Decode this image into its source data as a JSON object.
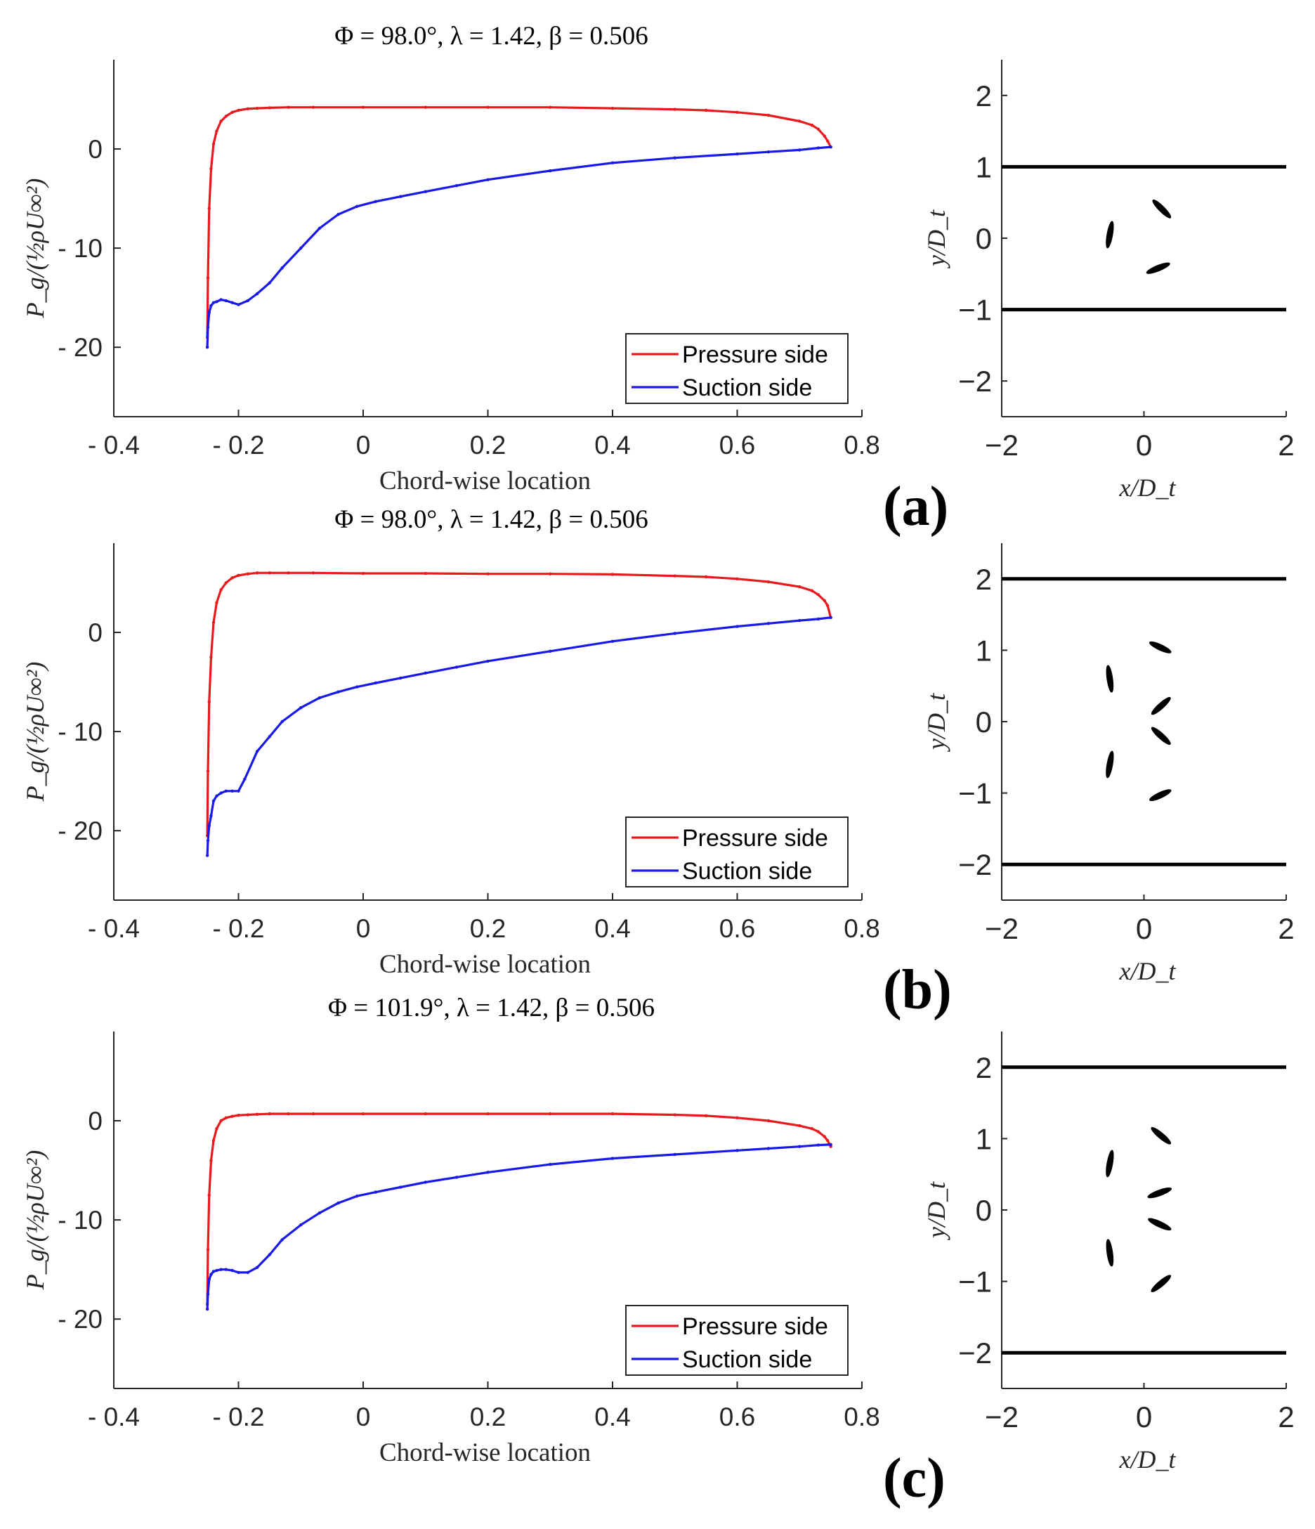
{
  "chart_data": [
    {
      "panel_label": "(a)",
      "type": "line",
      "title": "Φ = 98.0°, λ = 1.42, β = 0.506",
      "xlabel": "Chord-wise location",
      "ylabel": "P_g/(½ρU∞²)",
      "xlim": [
        -0.4,
        0.8
      ],
      "ylim": [
        -27,
        9
      ],
      "x_tick_labels": [
        "- 0.4",
        "- 0.2",
        "0",
        "0.2",
        "0.4",
        "0.6",
        "0.8"
      ],
      "y_tick_labels": [
        "0",
        "- 10",
        "- 20"
      ],
      "legend": {
        "position": "bottom-right",
        "entries": [
          "Pressure side",
          "Suction side"
        ]
      },
      "series": [
        {
          "name": "Pressure side",
          "color": "#e8191d",
          "x": [
            -0.25,
            -0.249,
            -0.247,
            -0.244,
            -0.24,
            -0.235,
            -0.228,
            -0.22,
            -0.21,
            -0.2,
            -0.185,
            -0.17,
            -0.15,
            -0.12,
            -0.08,
            0.0,
            0.1,
            0.2,
            0.3,
            0.4,
            0.5,
            0.55,
            0.6,
            0.65,
            0.7,
            0.72,
            0.73,
            0.74,
            0.745,
            0.75
          ],
          "y": [
            -19.0,
            -13.0,
            -6.0,
            -2.0,
            0.5,
            1.8,
            2.8,
            3.3,
            3.7,
            3.9,
            4.05,
            4.1,
            4.15,
            4.2,
            4.2,
            4.2,
            4.2,
            4.2,
            4.2,
            4.1,
            4.0,
            3.9,
            3.7,
            3.4,
            2.8,
            2.4,
            2.0,
            1.3,
            0.8,
            0.2
          ]
        },
        {
          "name": "Suction side",
          "color": "#1818e8",
          "x": [
            -0.25,
            -0.249,
            -0.247,
            -0.244,
            -0.24,
            -0.235,
            -0.228,
            -0.22,
            -0.21,
            -0.2,
            -0.185,
            -0.17,
            -0.15,
            -0.13,
            -0.1,
            -0.07,
            -0.04,
            -0.01,
            0.02,
            0.06,
            0.1,
            0.15,
            0.2,
            0.3,
            0.4,
            0.5,
            0.6,
            0.65,
            0.7,
            0.73,
            0.75
          ],
          "y": [
            -20.0,
            -18.0,
            -16.5,
            -15.8,
            -15.5,
            -15.4,
            -15.2,
            -15.3,
            -15.5,
            -15.7,
            -15.3,
            -14.6,
            -13.5,
            -12.0,
            -10.0,
            -8.0,
            -6.6,
            -5.8,
            -5.3,
            -4.8,
            -4.3,
            -3.7,
            -3.1,
            -2.2,
            -1.4,
            -0.9,
            -0.5,
            -0.3,
            -0.1,
            0.1,
            0.2
          ]
        }
      ],
      "flow_domain": {
        "xlabel": "x/D_t",
        "ylabel": "y/D_t",
        "xlim": [
          -2,
          2
        ],
        "ylim": [
          -2.5,
          2.5
        ],
        "x_tick_labels": [
          "−2",
          "0",
          "2"
        ],
        "y_tick_labels": [
          "2",
          "1",
          "0",
          "−1",
          "−2"
        ],
        "walls_y": [
          1,
          -1
        ],
        "blades": [
          {
            "cx": -0.48,
            "cy": 0.05,
            "len": 0.38,
            "angle_deg": 80
          },
          {
            "cx": 0.25,
            "cy": 0.41,
            "len": 0.35,
            "angle_deg": -45
          },
          {
            "cx": 0.2,
            "cy": -0.42,
            "len": 0.35,
            "angle_deg": 22
          }
        ]
      }
    },
    {
      "panel_label": "(b)",
      "type": "line",
      "title": "Φ = 98.0°, λ = 1.42, β = 0.506",
      "xlabel": "Chord-wise location",
      "ylabel": "P_g/(½ρU∞²)",
      "xlim": [
        -0.4,
        0.8
      ],
      "ylim": [
        -27,
        9
      ],
      "x_tick_labels": [
        "- 0.4",
        "- 0.2",
        "0",
        "0.2",
        "0.4",
        "0.6",
        "0.8"
      ],
      "y_tick_labels": [
        "0",
        "- 10",
        "- 20"
      ],
      "legend": {
        "position": "bottom-right",
        "entries": [
          "Pressure side",
          "Suction side"
        ]
      },
      "series": [
        {
          "name": "Pressure side",
          "color": "#e8191d",
          "x": [
            -0.25,
            -0.249,
            -0.247,
            -0.244,
            -0.24,
            -0.235,
            -0.228,
            -0.22,
            -0.21,
            -0.2,
            -0.185,
            -0.17,
            -0.15,
            -0.12,
            -0.08,
            0.0,
            0.1,
            0.2,
            0.3,
            0.4,
            0.5,
            0.55,
            0.6,
            0.65,
            0.7,
            0.72,
            0.73,
            0.74,
            0.745,
            0.75
          ],
          "y": [
            -20.5,
            -14.0,
            -7.0,
            -2.5,
            1.0,
            3.0,
            4.3,
            5.0,
            5.5,
            5.75,
            5.9,
            6.0,
            6.0,
            6.0,
            6.0,
            5.95,
            5.95,
            5.9,
            5.9,
            5.85,
            5.7,
            5.6,
            5.4,
            5.1,
            4.6,
            4.2,
            3.8,
            3.2,
            2.7,
            1.5
          ]
        },
        {
          "name": "Suction side",
          "color": "#1818e8",
          "x": [
            -0.25,
            -0.249,
            -0.247,
            -0.244,
            -0.24,
            -0.235,
            -0.228,
            -0.22,
            -0.21,
            -0.2,
            -0.19,
            -0.17,
            -0.15,
            -0.13,
            -0.1,
            -0.07,
            -0.04,
            -0.01,
            0.02,
            0.06,
            0.1,
            0.15,
            0.2,
            0.3,
            0.4,
            0.5,
            0.6,
            0.65,
            0.7,
            0.73,
            0.75
          ],
          "y": [
            -22.5,
            -21.0,
            -19.5,
            -18.5,
            -17.0,
            -16.5,
            -16.2,
            -16.0,
            -16.0,
            -16.0,
            -14.8,
            -12.0,
            -10.5,
            -9.0,
            -7.6,
            -6.6,
            -6.0,
            -5.5,
            -5.1,
            -4.6,
            -4.1,
            -3.5,
            -2.9,
            -1.9,
            -0.9,
            -0.1,
            0.6,
            0.9,
            1.2,
            1.35,
            1.5
          ]
        }
      ],
      "flow_domain": {
        "xlabel": "x/D_t",
        "ylabel": "y/D_t",
        "xlim": [
          -2,
          2
        ],
        "ylim": [
          -2.5,
          2.5
        ],
        "x_tick_labels": [
          "−2",
          "0",
          "2"
        ],
        "y_tick_labels": [
          "2",
          "1",
          "0",
          "−1",
          "−2"
        ],
        "walls_y": [
          2,
          -2
        ],
        "blades": [
          {
            "cx": -0.48,
            "cy": 0.6,
            "len": 0.38,
            "angle_deg": -82
          },
          {
            "cx": -0.48,
            "cy": -0.6,
            "len": 0.38,
            "angle_deg": 80
          },
          {
            "cx": 0.23,
            "cy": 1.04,
            "len": 0.33,
            "angle_deg": -25
          },
          {
            "cx": 0.24,
            "cy": 0.22,
            "len": 0.35,
            "angle_deg": 42
          },
          {
            "cx": 0.24,
            "cy": -0.2,
            "len": 0.35,
            "angle_deg": -42
          },
          {
            "cx": 0.23,
            "cy": -1.03,
            "len": 0.33,
            "angle_deg": 25
          }
        ]
      }
    },
    {
      "panel_label": "(c)",
      "type": "line",
      "title": "Φ = 101.9°, λ = 1.42, β = 0.506",
      "xlabel": "Chord-wise location",
      "ylabel": "P_g/(½ρU∞²)",
      "xlim": [
        -0.4,
        0.8
      ],
      "ylim": [
        -27,
        9
      ],
      "x_tick_labels": [
        "- 0.4",
        "- 0.2",
        "0",
        "0.2",
        "0.4",
        "0.6",
        "0.8"
      ],
      "y_tick_labels": [
        "0",
        "- 10",
        "- 20"
      ],
      "legend": {
        "position": "bottom-right",
        "entries": [
          "Pressure side",
          "Suction side"
        ]
      },
      "series": [
        {
          "name": "Pressure side",
          "color": "#e8191d",
          "x": [
            -0.25,
            -0.249,
            -0.247,
            -0.244,
            -0.24,
            -0.235,
            -0.228,
            -0.22,
            -0.21,
            -0.2,
            -0.185,
            -0.17,
            -0.15,
            -0.12,
            -0.08,
            0.0,
            0.1,
            0.2,
            0.3,
            0.4,
            0.5,
            0.55,
            0.6,
            0.65,
            0.7,
            0.72,
            0.73,
            0.74,
            0.745,
            0.75
          ],
          "y": [
            -18.5,
            -13.0,
            -7.5,
            -4.0,
            -2.0,
            -0.8,
            0.0,
            0.3,
            0.45,
            0.55,
            0.6,
            0.65,
            0.7,
            0.7,
            0.7,
            0.7,
            0.7,
            0.7,
            0.7,
            0.7,
            0.6,
            0.5,
            0.3,
            0.0,
            -0.5,
            -0.8,
            -1.1,
            -1.6,
            -2.0,
            -2.6
          ]
        },
        {
          "name": "Suction side",
          "color": "#1818e8",
          "x": [
            -0.25,
            -0.249,
            -0.247,
            -0.244,
            -0.24,
            -0.235,
            -0.228,
            -0.22,
            -0.21,
            -0.2,
            -0.185,
            -0.17,
            -0.15,
            -0.13,
            -0.1,
            -0.07,
            -0.04,
            -0.01,
            0.02,
            0.06,
            0.1,
            0.15,
            0.2,
            0.3,
            0.4,
            0.5,
            0.6,
            0.65,
            0.7,
            0.73,
            0.75
          ],
          "y": [
            -19.0,
            -17.5,
            -16.0,
            -15.5,
            -15.2,
            -15.1,
            -15.0,
            -15.0,
            -15.1,
            -15.3,
            -15.3,
            -14.8,
            -13.5,
            -12.0,
            -10.5,
            -9.3,
            -8.3,
            -7.6,
            -7.2,
            -6.7,
            -6.2,
            -5.7,
            -5.2,
            -4.4,
            -3.8,
            -3.4,
            -3.0,
            -2.8,
            -2.6,
            -2.45,
            -2.4
          ]
        }
      ],
      "flow_domain": {
        "xlabel": "x/D_t",
        "ylabel": "y/D_t",
        "xlim": [
          -2,
          2
        ],
        "ylim": [
          -2.5,
          2.5
        ],
        "x_tick_labels": [
          "−2",
          "0",
          "2"
        ],
        "y_tick_labels": [
          "2",
          "1",
          "0",
          "−1",
          "−2"
        ],
        "walls_y": [
          2,
          -2
        ],
        "blades": [
          {
            "cx": -0.48,
            "cy": 0.65,
            "len": 0.38,
            "angle_deg": 80
          },
          {
            "cx": -0.48,
            "cy": -0.6,
            "len": 0.38,
            "angle_deg": -82
          },
          {
            "cx": 0.24,
            "cy": 1.04,
            "len": 0.35,
            "angle_deg": -40
          },
          {
            "cx": 0.22,
            "cy": 0.24,
            "len": 0.35,
            "angle_deg": 20
          },
          {
            "cx": 0.22,
            "cy": -0.2,
            "len": 0.35,
            "angle_deg": -25
          },
          {
            "cx": 0.24,
            "cy": -1.03,
            "len": 0.35,
            "angle_deg": 40
          }
        ]
      }
    }
  ]
}
